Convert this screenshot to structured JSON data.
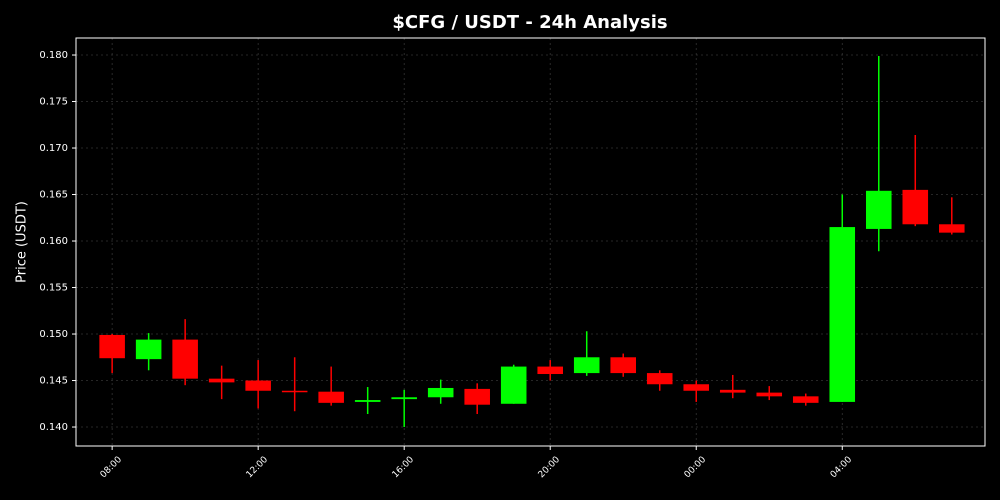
{
  "chart_data": {
    "type": "candlestick",
    "title": "$CFG / USDT - 24h Analysis",
    "y_label": "Price (USDT)",
    "categories": [
      "08:00",
      null,
      null,
      null,
      "12:00",
      null,
      null,
      null,
      "16:00",
      null,
      null,
      null,
      "20:00",
      null,
      null,
      null,
      "00:00",
      null,
      null,
      null,
      "04:00",
      null,
      null,
      null
    ],
    "open": [
      0.1499,
      0.1473,
      0.1494,
      0.1452,
      0.145,
      0.1439,
      0.1438,
      0.1427,
      0.143,
      0.1432,
      0.1441,
      0.1425,
      0.1465,
      0.1458,
      0.1475,
      0.1458,
      0.1446,
      0.144,
      0.1437,
      0.1433,
      0.1427,
      0.1613,
      0.1655,
      0.1618
    ],
    "high": [
      0.15,
      0.1501,
      0.1516,
      0.1466,
      0.1472,
      0.1475,
      0.1465,
      0.1443,
      0.144,
      0.1451,
      0.1447,
      0.1467,
      0.1472,
      0.1503,
      0.1479,
      0.1461,
      0.145,
      0.1456,
      0.1444,
      0.1436,
      0.165,
      0.1799,
      0.1714,
      0.1647
    ],
    "low": [
      0.1458,
      0.1461,
      0.1445,
      0.143,
      0.142,
      0.1417,
      0.1423,
      0.1414,
      0.14,
      0.1425,
      0.1414,
      0.1425,
      0.145,
      0.1455,
      0.1454,
      0.1439,
      0.1427,
      0.1431,
      0.1429,
      0.1423,
      0.1427,
      0.1589,
      0.1616,
      0.1607
    ],
    "close": [
      0.1474,
      0.1494,
      0.1452,
      0.1448,
      0.1439,
      0.1438,
      0.1426,
      0.1429,
      0.1432,
      0.1442,
      0.1424,
      0.1465,
      0.1457,
      0.1475,
      0.1458,
      0.1446,
      0.1439,
      0.1437,
      0.1433,
      0.1426,
      0.1615,
      0.1654,
      0.1618,
      0.1609
    ],
    "up_color": "#00ff00",
    "down_color": "#ff0000",
    "ylim": [
      0.13796,
      0.18183
    ],
    "yticks": [
      {
        "value": 0.14,
        "label": "0.140"
      },
      0.145,
      {
        "value": 0.15,
        "label": "0.150"
      },
      0.155,
      {
        "value": 0.16,
        "label": "0.160"
      },
      0.165,
      {
        "value": 0.17,
        "label": "0.170"
      },
      0.175,
      {
        "value": 0.18,
        "label": "0.180"
      }
    ],
    "grid": true
  }
}
